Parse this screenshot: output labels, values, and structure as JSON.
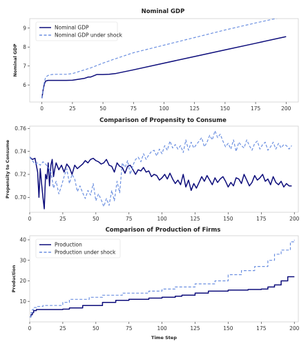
{
  "chart_data": [
    {
      "type": "line",
      "title": "Nominal GDP",
      "xlabel": "",
      "ylabel": "Nominal GDP",
      "xlim": [
        -10,
        210
      ],
      "ylim": [
        5.1,
        9.5
      ],
      "xticks": [
        0,
        25,
        50,
        75,
        100,
        125,
        150,
        175,
        200
      ],
      "yticks": [
        6,
        7,
        8,
        9
      ],
      "legend_position": "upper-left",
      "grid": false,
      "series": [
        {
          "name": "Nominal GDP",
          "color": "#0b0b7a",
          "dash": "solid",
          "x": [
            0,
            1,
            2,
            3,
            5,
            8,
            12,
            20,
            25,
            30,
            35,
            38,
            40,
            42,
            45,
            50,
            55,
            60,
            75,
            100,
            125,
            150,
            175,
            200
          ],
          "y": [
            5.3,
            5.75,
            6.05,
            6.2,
            6.24,
            6.24,
            6.24,
            6.24,
            6.25,
            6.3,
            6.35,
            6.42,
            6.42,
            6.47,
            6.55,
            6.55,
            6.56,
            6.6,
            6.8,
            7.15,
            7.5,
            7.85,
            8.2,
            8.55
          ]
        },
        {
          "name": "Nominal GDP under shock",
          "color": "#6b8fe0",
          "dash": "dashed",
          "x": [
            0,
            1,
            2,
            3,
            5,
            8,
            12,
            15,
            20,
            25,
            30,
            40,
            50,
            60,
            75,
            100,
            125,
            150,
            175,
            200
          ],
          "y": [
            5.3,
            5.8,
            6.15,
            6.4,
            6.5,
            6.55,
            6.56,
            6.56,
            6.56,
            6.6,
            6.7,
            6.9,
            7.15,
            7.38,
            7.7,
            8.1,
            8.5,
            8.9,
            9.27,
            9.62
          ]
        }
      ]
    },
    {
      "type": "line",
      "title": "Comparison of Propensity to Consume",
      "xlabel": "",
      "ylabel": "Propensity to Consume",
      "xlim": [
        0,
        203
      ],
      "ylim": [
        0.687,
        0.762
      ],
      "xticks": [
        0,
        25,
        50,
        75,
        100,
        125,
        150,
        175,
        200
      ],
      "yticks": [
        0.7,
        0.72,
        0.74,
        0.76
      ],
      "grid": false,
      "series": [
        {
          "color": "#0b0b7a",
          "dash": "solid",
          "x": [
            0,
            2,
            4,
            6,
            7,
            8,
            9,
            10,
            11,
            12,
            13,
            14,
            15,
            16,
            17,
            18,
            19,
            20,
            22,
            24,
            26,
            28,
            30,
            32,
            34,
            36,
            38,
            40,
            42,
            44,
            46,
            48,
            50,
            52,
            54,
            56,
            58,
            60,
            62,
            64,
            66,
            68,
            70,
            72,
            74,
            76,
            78,
            80,
            82,
            84,
            86,
            88,
            90,
            92,
            94,
            96,
            98,
            100,
            102,
            104,
            106,
            108,
            110,
            112,
            114,
            116,
            118,
            120,
            122,
            124,
            126,
            128,
            130,
            132,
            134,
            136,
            138,
            140,
            142,
            144,
            146,
            148,
            150,
            152,
            154,
            156,
            158,
            160,
            162,
            164,
            166,
            168,
            170,
            172,
            174,
            176,
            178,
            180,
            182,
            184,
            186,
            188,
            190,
            192,
            194,
            196,
            198
          ],
          "y": [
            0.735,
            0.733,
            0.734,
            0.722,
            0.7,
            0.725,
            0.712,
            0.7,
            0.69,
            0.72,
            0.716,
            0.73,
            0.71,
            0.728,
            0.733,
            0.718,
            0.725,
            0.73,
            0.724,
            0.728,
            0.722,
            0.729,
            0.726,
            0.72,
            0.728,
            0.725,
            0.727,
            0.729,
            0.732,
            0.73,
            0.733,
            0.734,
            0.732,
            0.731,
            0.729,
            0.73,
            0.733,
            0.728,
            0.727,
            0.722,
            0.73,
            0.727,
            0.726,
            0.721,
            0.727,
            0.728,
            0.724,
            0.72,
            0.724,
            0.723,
            0.726,
            0.722,
            0.723,
            0.718,
            0.72,
            0.719,
            0.715,
            0.717,
            0.72,
            0.716,
            0.721,
            0.716,
            0.712,
            0.715,
            0.711,
            0.72,
            0.709,
            0.715,
            0.706,
            0.712,
            0.708,
            0.713,
            0.718,
            0.714,
            0.719,
            0.715,
            0.711,
            0.717,
            0.713,
            0.716,
            0.718,
            0.714,
            0.709,
            0.713,
            0.71,
            0.717,
            0.716,
            0.712,
            0.72,
            0.715,
            0.71,
            0.713,
            0.719,
            0.715,
            0.717,
            0.72,
            0.714,
            0.716,
            0.711,
            0.718,
            0.713,
            0.711,
            0.714,
            0.709,
            0.712,
            0.71,
            0.71
          ]
        },
        {
          "color": "#6b8fe0",
          "dash": "dashed",
          "x": [
            0,
            2,
            4,
            6,
            8,
            10,
            12,
            14,
            16,
            18,
            20,
            22,
            24,
            26,
            28,
            30,
            32,
            34,
            36,
            38,
            40,
            42,
            44,
            46,
            48,
            50,
            52,
            54,
            56,
            58,
            60,
            62,
            64,
            66,
            68,
            70,
            72,
            74,
            76,
            78,
            80,
            82,
            84,
            86,
            88,
            90,
            92,
            94,
            96,
            98,
            100,
            102,
            104,
            106,
            108,
            110,
            112,
            114,
            116,
            118,
            120,
            122,
            124,
            126,
            128,
            130,
            132,
            134,
            136,
            138,
            140,
            142,
            144,
            146,
            148,
            150,
            152,
            154,
            156,
            158,
            160,
            162,
            164,
            166,
            168,
            170,
            172,
            174,
            176,
            178,
            180,
            182,
            184,
            186,
            188,
            190,
            192,
            194,
            196,
            198
          ],
          "y": [
            0.735,
            0.732,
            0.729,
            0.73,
            0.728,
            0.731,
            0.729,
            0.726,
            0.722,
            0.708,
            0.714,
            0.703,
            0.71,
            0.718,
            0.725,
            0.712,
            0.72,
            0.716,
            0.705,
            0.71,
            0.704,
            0.699,
            0.706,
            0.702,
            0.712,
            0.697,
            0.703,
            0.698,
            0.692,
            0.699,
            0.693,
            0.706,
            0.697,
            0.714,
            0.704,
            0.73,
            0.726,
            0.732,
            0.72,
            0.728,
            0.733,
            0.735,
            0.731,
            0.738,
            0.733,
            0.737,
            0.74,
            0.741,
            0.736,
            0.742,
            0.738,
            0.745,
            0.741,
            0.749,
            0.743,
            0.746,
            0.742,
            0.745,
            0.739,
            0.75,
            0.741,
            0.748,
            0.743,
            0.746,
            0.749,
            0.752,
            0.744,
            0.748,
            0.754,
            0.75,
            0.758,
            0.752,
            0.755,
            0.749,
            0.744,
            0.747,
            0.742,
            0.75,
            0.74,
            0.748,
            0.745,
            0.743,
            0.75,
            0.745,
            0.741,
            0.747,
            0.749,
            0.742,
            0.746,
            0.748,
            0.741,
            0.744,
            0.748,
            0.742,
            0.747,
            0.743,
            0.746,
            0.745,
            0.742,
            0.745
          ]
        }
      ]
    },
    {
      "type": "line",
      "title": "Comparison of Production of Firms",
      "xlabel": "Time Step",
      "ylabel": "Production",
      "xlim": [
        0,
        203
      ],
      "ylim": [
        0,
        42
      ],
      "xticks": [
        0,
        25,
        50,
        75,
        100,
        125,
        150,
        175,
        200
      ],
      "yticks": [
        10,
        20,
        30,
        40
      ],
      "legend_position": "upper-left",
      "grid": false,
      "series": [
        {
          "name": "Production",
          "color": "#0b0b7a",
          "dash": "solid",
          "steps": true,
          "x": [
            0,
            1,
            2,
            3,
            5,
            25,
            30,
            40,
            55,
            65,
            75,
            90,
            100,
            110,
            115,
            125,
            135,
            150,
            165,
            175,
            180,
            185,
            190,
            195,
            200
          ],
          "y": [
            2.5,
            3.5,
            4.5,
            5.5,
            6,
            6.2,
            6.8,
            8,
            9.5,
            10.5,
            11,
            11.6,
            12,
            12.5,
            13,
            14,
            15,
            15.5,
            15.8,
            16,
            17,
            18,
            20,
            22,
            22
          ]
        },
        {
          "name": "Production under shock",
          "color": "#6b8fe0",
          "dash": "dashed",
          "steps": true,
          "x": [
            0,
            1,
            2,
            3,
            6,
            10,
            25,
            30,
            45,
            55,
            70,
            90,
            100,
            110,
            125,
            140,
            150,
            160,
            170,
            180,
            185,
            190,
            197,
            200
          ],
          "y": [
            2.5,
            4.5,
            6,
            7,
            7.5,
            8,
            9.5,
            11,
            12,
            13,
            14,
            15,
            16,
            17,
            18.5,
            20,
            23,
            25,
            27,
            30,
            33,
            35,
            39,
            40
          ]
        }
      ]
    }
  ]
}
